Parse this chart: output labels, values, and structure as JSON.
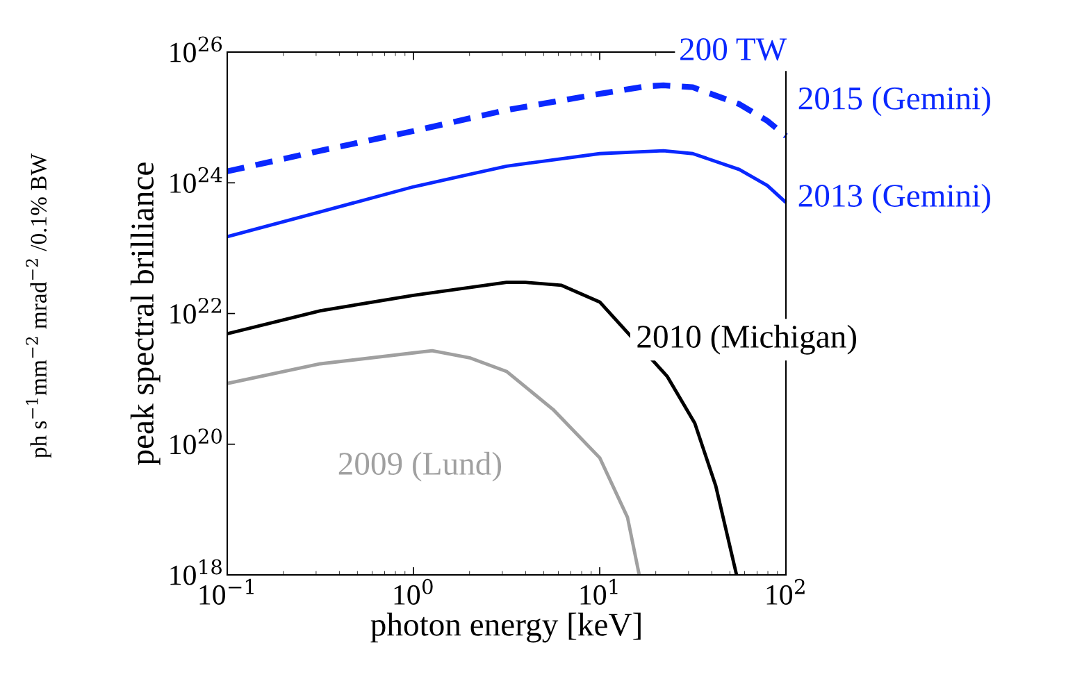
{
  "chart_data": {
    "type": "line",
    "xlabel": "photon energy [keV]",
    "ylabel": "peak spectral brilliance",
    "log": "xy",
    "xlim": [
      0.1,
      100
    ],
    "ylim": [
      1e+18,
      1e+26
    ],
    "xticks": [
      {
        "value": 0.1,
        "label": "10$^{−1}$"
      },
      {
        "value": 1,
        "label": "10$^{0}$"
      },
      {
        "value": 10,
        "label": "10$^{1}$"
      },
      {
        "value": 100,
        "label": "10$^{2}$"
      }
    ],
    "yticks": [
      {
        "value": 1e+18,
        "label": "10$^{18}$"
      },
      {
        "value": 1e+20,
        "label": "10$^{20}$"
      },
      {
        "value": 1e+22,
        "label": "10$^{22}$"
      },
      {
        "value": 1e+24,
        "label": "10$^{24}$"
      },
      {
        "value": 1e+26,
        "label": "10$^{26}$"
      }
    ],
    "grid": false,
    "legend": false,
    "marker": "none",
    "annotations": [
      "ph s$^{−1}$mm$^{−2}$ mrad$^{−2}$ /0.1% BW",
      "200 TW"
    ],
    "series": [
      {
        "name": "2015 (Gemini)",
        "color": "#0a28ff",
        "line_style": "dashed",
        "x": [
          0.1,
          0.316,
          1,
          3.16,
          10,
          17.8,
          22,
          31.6,
          56.2,
          79.4,
          100
        ],
        "values": [
          1.5e+24,
          3.1e+24,
          6.2e+24,
          1.3e+25,
          2.3e+25,
          3e+25,
          3.1e+25,
          2.9e+25,
          1.6e+25,
          8.9e+24,
          5.2e+24
        ]
      },
      {
        "name": "2013 (Gemini)",
        "color": "#0a28ff",
        "line_style": "solid",
        "x": [
          0.1,
          0.316,
          1,
          3.16,
          10,
          22,
          31.6,
          56.2,
          79.4,
          100
        ],
        "values": [
          1.5e+23,
          3.6e+23,
          8.7e+23,
          1.8e+24,
          2.8e+24,
          3.1e+24,
          2.8e+24,
          1.6e+24,
          9.1e+23,
          5e+23
        ]
      },
      {
        "name": "2010 (Michigan)",
        "color": "#000000",
        "line_style": "solid",
        "x": [
          0.1,
          0.316,
          1,
          3.16,
          3.98,
          6.24,
          10,
          23,
          32.4,
          42,
          54.3
        ],
        "values": [
          4.9e+21,
          1.1e+22,
          1.9e+22,
          3e+22,
          3e+22,
          2.7e+22,
          1.5e+22,
          1.1e+21,
          2.1e+20,
          2.3e+19,
          1e+18
        ]
      },
      {
        "name": "2009 (Lund)",
        "color": "#a0a0a0",
        "line_style": "solid",
        "x": [
          0.1,
          0.316,
          1,
          1.26,
          2,
          3.16,
          5.62,
          10,
          14.1,
          16.3
        ],
        "values": [
          8.5e+20,
          1.7e+21,
          2.5e+21,
          2.7e+21,
          2.1e+21,
          1.3e+21,
          3.4e+20,
          6.2e+19,
          7.6e+18,
          1e+18
        ]
      }
    ]
  }
}
